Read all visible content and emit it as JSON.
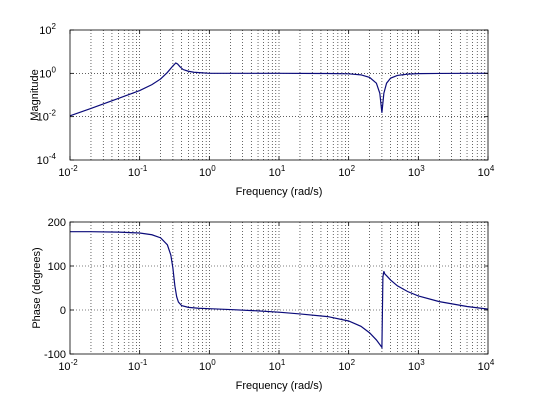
{
  "chart_data": [
    {
      "type": "line",
      "title": "",
      "xlabel": "Frequency (rad/s)",
      "ylabel": "Magnitude",
      "xscale": "log",
      "yscale": "log",
      "xlim": [
        0.01,
        10000
      ],
      "ylim": [
        0.0001,
        100
      ],
      "grid": true,
      "xticks": [
        {
          "base": "10",
          "exp": "-2",
          "value": 0.01
        },
        {
          "base": "10",
          "exp": "-1",
          "value": 0.1
        },
        {
          "base": "10",
          "exp": "0",
          "value": 1
        },
        {
          "base": "10",
          "exp": "1",
          "value": 10
        },
        {
          "base": "10",
          "exp": "2",
          "value": 100
        },
        {
          "base": "10",
          "exp": "3",
          "value": 1000
        },
        {
          "base": "10",
          "exp": "4",
          "value": 10000
        }
      ],
      "yticks": [
        {
          "base": "10",
          "exp": "-4",
          "value": 0.0001
        },
        {
          "base": "10",
          "exp": "-2",
          "value": 0.01
        },
        {
          "base": "10",
          "exp": "0",
          "value": 1
        },
        {
          "base": "10",
          "exp": "2",
          "value": 100
        }
      ],
      "series": [
        {
          "color": "#0b0b7a",
          "x": [
            0.01,
            0.02,
            0.05,
            0.1,
            0.15,
            0.2,
            0.25,
            0.3,
            0.33,
            0.35,
            0.38,
            0.42,
            0.5,
            0.6,
            0.8,
            1,
            2,
            5,
            10,
            50,
            100,
            150,
            200,
            250,
            280,
            300,
            320,
            350,
            400,
            500,
            700,
            1000,
            2000,
            5000,
            10000
          ],
          "y": [
            0.011,
            0.024,
            0.07,
            0.16,
            0.3,
            0.55,
            1.1,
            2.2,
            3.0,
            2.7,
            2.0,
            1.5,
            1.25,
            1.12,
            1.05,
            1.0,
            1.0,
            1.0,
            1.0,
            0.98,
            0.95,
            0.85,
            0.65,
            0.35,
            0.12,
            0.015,
            0.12,
            0.35,
            0.6,
            0.8,
            0.92,
            0.97,
            0.99,
            1.0,
            1.0
          ]
        }
      ]
    },
    {
      "type": "line",
      "title": "",
      "xlabel": "Frequency (rad/s)",
      "ylabel": "Phase (degrees)",
      "xscale": "log",
      "yscale": "linear",
      "xlim": [
        0.01,
        10000
      ],
      "ylim": [
        -100,
        200
      ],
      "grid": true,
      "xticks": [
        {
          "base": "10",
          "exp": "-2",
          "value": 0.01
        },
        {
          "base": "10",
          "exp": "-1",
          "value": 0.1
        },
        {
          "base": "10",
          "exp": "0",
          "value": 1
        },
        {
          "base": "10",
          "exp": "1",
          "value": 10
        },
        {
          "base": "10",
          "exp": "2",
          "value": 100
        },
        {
          "base": "10",
          "exp": "3",
          "value": 1000
        },
        {
          "base": "10",
          "exp": "4",
          "value": 10000
        }
      ],
      "yticks": [
        {
          "label": "-100",
          "value": -100
        },
        {
          "label": "0",
          "value": 0
        },
        {
          "label": "100",
          "value": 100
        },
        {
          "label": "200",
          "value": 200
        }
      ],
      "series": [
        {
          "color": "#0b0b7a",
          "x": [
            0.01,
            0.02,
            0.05,
            0.1,
            0.15,
            0.2,
            0.25,
            0.28,
            0.3,
            0.32,
            0.34,
            0.36,
            0.4,
            0.5,
            0.7,
            1,
            2,
            5,
            10,
            20,
            50,
            100,
            150,
            200,
            250,
            300,
            310,
            320,
            330,
            350,
            400,
            500,
            700,
            1000,
            2000,
            5000,
            10000
          ],
          "y": [
            178,
            178,
            177,
            175,
            171,
            164,
            148,
            125,
            95,
            55,
            30,
            18,
            10,
            6,
            4,
            3,
            1,
            -2,
            -5,
            -9,
            -15,
            -25,
            -37,
            -52,
            -68,
            -85,
            75,
            88,
            82,
            78,
            68,
            55,
            42,
            32,
            19,
            8,
            2
          ]
        }
      ]
    }
  ]
}
